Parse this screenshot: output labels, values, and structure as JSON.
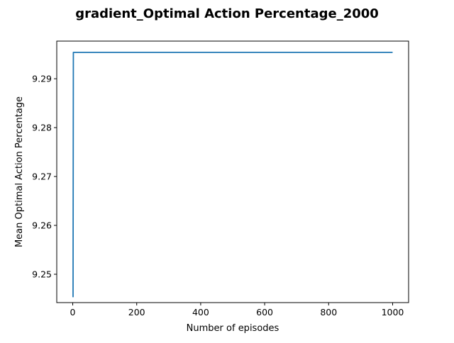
{
  "chart_data": {
    "type": "line",
    "title": "gradient_Optimal Action Percentage_2000",
    "xlabel": "Number of episodes",
    "ylabel": "Mean Optimal Action Percentage",
    "xlim": [
      -49.95,
      1049.95
    ],
    "ylim": [
      9.2442,
      9.2977
    ],
    "x_ticks": [
      0,
      200,
      400,
      600,
      800,
      1000
    ],
    "x_tick_labels": [
      "0",
      "200",
      "400",
      "600",
      "800",
      "1000"
    ],
    "y_ticks": [
      9.25,
      9.26,
      9.27,
      9.28,
      9.29
    ],
    "y_tick_labels": [
      "9.25",
      "9.26",
      "9.27",
      "9.28",
      "9.29"
    ],
    "grid": false,
    "series": [
      {
        "color": "#1f77b4",
        "x": [
          1,
          2,
          1000
        ],
        "y": [
          9.2453,
          9.2954,
          9.2954
        ]
      }
    ]
  }
}
